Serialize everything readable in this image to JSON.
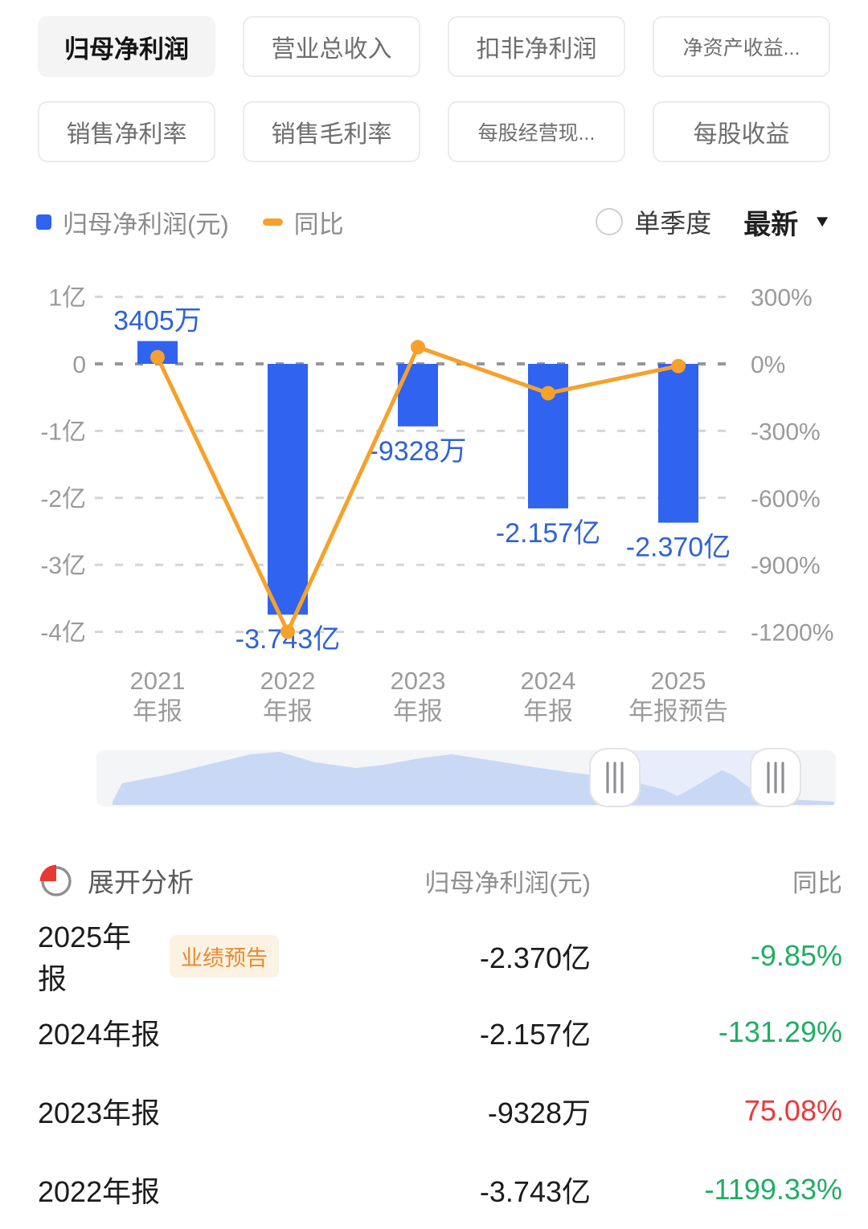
{
  "tabs": {
    "row1": [
      "归母净利润",
      "营业总收入",
      "扣非净利润",
      "净资产收益..."
    ],
    "row2": [
      "销售净利率",
      "销售毛利率",
      "每股经营现...",
      "每股收益"
    ]
  },
  "legend": {
    "bar_series_label": "归母净利润(元)",
    "line_series_label": "同比",
    "radio_label": "单季度",
    "dropdown_label": "最新"
  },
  "chart_data": {
    "type": "bar+line",
    "categories": [
      [
        "2021",
        "年报"
      ],
      [
        "2022",
        "年报"
      ],
      [
        "2023",
        "年报"
      ],
      [
        "2024",
        "年报"
      ],
      [
        "2025",
        "年报预告"
      ]
    ],
    "bar_series": {
      "name": "归母净利润(元)",
      "unit": "亿",
      "values": [
        0.3405,
        -3.743,
        -0.9328,
        -2.157,
        -2.37
      ],
      "labels": [
        "3405万",
        "-3.743亿",
        "-9328万",
        "-2.157亿",
        "-2.370亿"
      ]
    },
    "line_series": {
      "name": "同比",
      "unit": "%",
      "values": [
        30,
        -1199.33,
        75.08,
        -131.29,
        -9.85
      ]
    },
    "left_axis": {
      "ticks": [
        "1亿",
        "0",
        "-1亿",
        "-2亿",
        "-3亿",
        "-4亿"
      ],
      "values": [
        1,
        0,
        -1,
        -2,
        -3,
        -4
      ]
    },
    "right_axis": {
      "ticks": [
        "300%",
        "0%",
        "-300%",
        "-600%",
        "-900%",
        "-1200%"
      ],
      "values": [
        300,
        0,
        -300,
        -600,
        -900,
        -1200
      ]
    },
    "grid": "dashed",
    "legend_position": "top"
  },
  "analysis": {
    "title": "展开分析",
    "col_value": "归母净利润(元)",
    "col_yoy": "同比",
    "rows": [
      {
        "period": "2025年报",
        "badge": "业绩预告",
        "value": "-2.370亿",
        "yoy": "-9.85%",
        "yoy_color": "green"
      },
      {
        "period": "2024年报",
        "badge": "",
        "value": "-2.157亿",
        "yoy": "-131.29%",
        "yoy_color": "green"
      },
      {
        "period": "2023年报",
        "badge": "",
        "value": "-9328万",
        "yoy": "75.08%",
        "yoy_color": "red"
      },
      {
        "period": "2022年报",
        "badge": "",
        "value": "-3.743亿",
        "yoy": "-1199.33%",
        "yoy_color": "green"
      }
    ]
  },
  "colors": {
    "bar": "#2F63F0",
    "line": "#F5A12B",
    "value_label": "#2F63D6",
    "green": "#1FAE63",
    "red": "#E9393B",
    "badge_text": "#E78B2E",
    "badge_bg": "#FCF2E3",
    "axis_text": "#9A9A9A"
  }
}
